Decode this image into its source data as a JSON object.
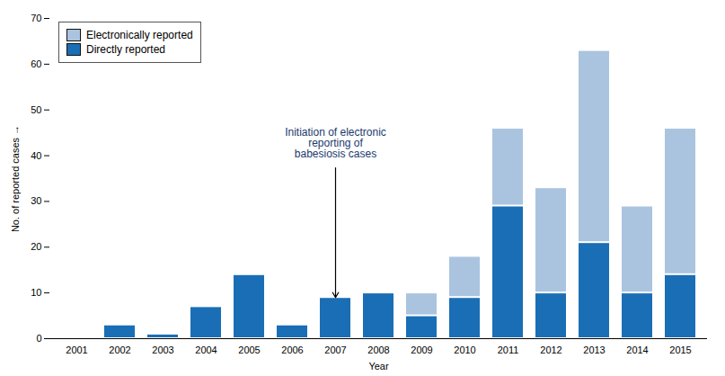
{
  "chart_data": {
    "type": "bar",
    "stacked": true,
    "xlabel": "Year",
    "ylabel": "No. of reported cases",
    "categories": [
      "2001",
      "2002",
      "2003",
      "2004",
      "2005",
      "2006",
      "2007",
      "2008",
      "2009",
      "2010",
      "2011",
      "2012",
      "2013",
      "2014",
      "2015"
    ],
    "series": [
      {
        "name": "Directly reported",
        "color": "#1a6eb5",
        "values": [
          0,
          3,
          1,
          7,
          14,
          3,
          9,
          10,
          5,
          9,
          29,
          10,
          21,
          10,
          14
        ]
      },
      {
        "name": "Electronically reported",
        "color": "#aac4e0",
        "values": [
          0,
          0,
          0,
          0,
          0,
          0,
          0,
          0,
          5,
          9,
          17,
          23,
          42,
          19,
          32
        ]
      }
    ],
    "ylim": [
      0,
      70
    ],
    "yticks": [
      0,
      10,
      20,
      30,
      40,
      50,
      60,
      70
    ],
    "legend": "upper left",
    "annotations": [
      {
        "text": "Initiation of electronic\nreporting of\nbabesiosis cases",
        "x": "2007",
        "y": 46,
        "arrow_x": "2007",
        "arrow_y": 9
      }
    ]
  }
}
